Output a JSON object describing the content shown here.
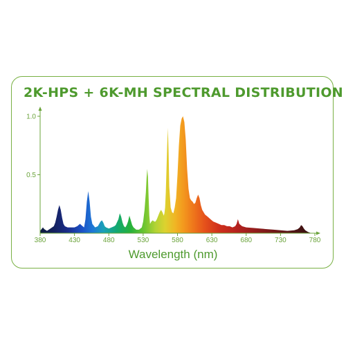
{
  "chart_data": {
    "type": "area",
    "title": "2K-HPS + 6K-MH SPECTRAL DISTRIBUTION",
    "xlabel": "Wavelength (nm)",
    "ylabel": "",
    "xlim": [
      380,
      780
    ],
    "ylim": [
      0,
      1.0
    ],
    "x_ticks": [
      380,
      430,
      480,
      530,
      580,
      630,
      680,
      730,
      780
    ],
    "y_ticks": [
      {
        "value": 0.5,
        "label": "0.5"
      },
      {
        "value": 1.0,
        "label": "1.0"
      }
    ],
    "grid": false,
    "colors": {
      "axis": "#6aa33a",
      "border": "#78b043",
      "title": "#4e9a2e"
    },
    "x": [
      380,
      384,
      386,
      390,
      395,
      400,
      402,
      404,
      406,
      408,
      410,
      412,
      414,
      416,
      420,
      424,
      430,
      434,
      438,
      440,
      444,
      446,
      448,
      450,
      452,
      454,
      456,
      460,
      464,
      468,
      470,
      472,
      474,
      476,
      480,
      484,
      488,
      490,
      494,
      496,
      498,
      500,
      502,
      504,
      506,
      508,
      510,
      512,
      514,
      516,
      518,
      520,
      524,
      528,
      530,
      532,
      534,
      535,
      536,
      537,
      538,
      539,
      540,
      542,
      544,
      546,
      548,
      550,
      552,
      554,
      556,
      558,
      560,
      561,
      562,
      563,
      564,
      565,
      566,
      567,
      568,
      570,
      572,
      574,
      576,
      578,
      580,
      582,
      584,
      586,
      588,
      590,
      592,
      594,
      596,
      598,
      600,
      602,
      604,
      606,
      608,
      610,
      612,
      614,
      616,
      618,
      620,
      624,
      628,
      632,
      636,
      640,
      644,
      648,
      652,
      656,
      660,
      664,
      666,
      668,
      670,
      674,
      680,
      690,
      700,
      710,
      720,
      730,
      740,
      750,
      755,
      758,
      760,
      762,
      764,
      766,
      770,
      775
    ],
    "values": [
      0.02,
      0.05,
      0.035,
      0.02,
      0.04,
      0.06,
      0.09,
      0.14,
      0.2,
      0.24,
      0.2,
      0.13,
      0.08,
      0.06,
      0.05,
      0.05,
      0.05,
      0.06,
      0.08,
      0.07,
      0.05,
      0.12,
      0.27,
      0.36,
      0.27,
      0.14,
      0.08,
      0.05,
      0.06,
      0.1,
      0.11,
      0.09,
      0.06,
      0.05,
      0.04,
      0.05,
      0.06,
      0.07,
      0.12,
      0.17,
      0.14,
      0.09,
      0.06,
      0.05,
      0.07,
      0.1,
      0.15,
      0.11,
      0.07,
      0.05,
      0.04,
      0.03,
      0.03,
      0.05,
      0.1,
      0.2,
      0.35,
      0.47,
      0.55,
      0.48,
      0.3,
      0.15,
      0.08,
      0.1,
      0.11,
      0.1,
      0.1,
      0.12,
      0.15,
      0.18,
      0.2,
      0.18,
      0.15,
      0.17,
      0.22,
      0.35,
      0.55,
      0.75,
      0.9,
      0.7,
      0.4,
      0.22,
      0.18,
      0.17,
      0.22,
      0.3,
      0.5,
      0.75,
      0.92,
      0.98,
      1.0,
      0.95,
      0.8,
      0.55,
      0.38,
      0.3,
      0.28,
      0.27,
      0.25,
      0.26,
      0.3,
      0.33,
      0.3,
      0.24,
      0.2,
      0.18,
      0.16,
      0.14,
      0.12,
      0.1,
      0.09,
      0.08,
      0.07,
      0.07,
      0.06,
      0.06,
      0.05,
      0.06,
      0.08,
      0.12,
      0.08,
      0.06,
      0.05,
      0.045,
      0.04,
      0.035,
      0.03,
      0.025,
      0.02,
      0.025,
      0.035,
      0.05,
      0.07,
      0.06,
      0.04,
      0.025,
      0.01,
      0.0
    ]
  }
}
